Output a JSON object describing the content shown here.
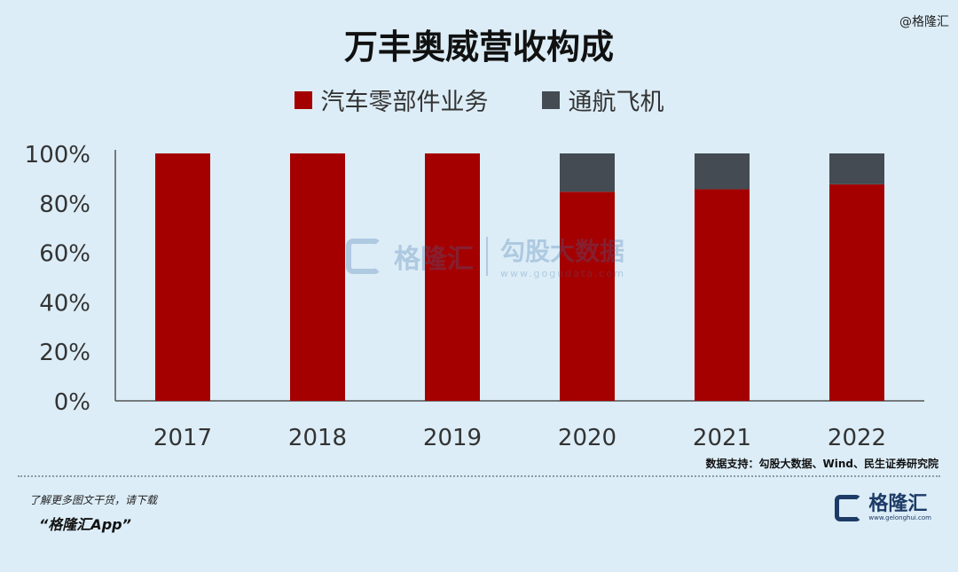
{
  "corner_label": "@格隆汇",
  "chart_data": {
    "type": "bar",
    "stacked": true,
    "title": "万丰奥威营收构成",
    "categories": [
      "2017",
      "2018",
      "2019",
      "2020",
      "2021",
      "2022"
    ],
    "series": [
      {
        "name": "汽车零部件业务",
        "color": "#a50000",
        "values": [
          100,
          100,
          100,
          84.5,
          85.5,
          87.5
        ]
      },
      {
        "name": "通航飞机",
        "color": "#444b52",
        "values": [
          0,
          0,
          0,
          15.5,
          14.5,
          12.5
        ]
      }
    ],
    "yticks": [
      "0%",
      "20%",
      "40%",
      "60%",
      "80%",
      "100%"
    ],
    "ylim": [
      0,
      100
    ],
    "legend_position": "top",
    "grid": false
  },
  "watermark": {
    "left": "格隆汇",
    "right_big": "勾股大数据",
    "right_small": "www.gogudata.com"
  },
  "source": "数据支持：勾股大数据、Wind、民生证券研究院",
  "promo": {
    "line1": "了解更多图文干货，请下载",
    "line2": "“格隆汇App”"
  },
  "brand": {
    "name": "格隆汇",
    "url": "www.gelonghui.com"
  }
}
